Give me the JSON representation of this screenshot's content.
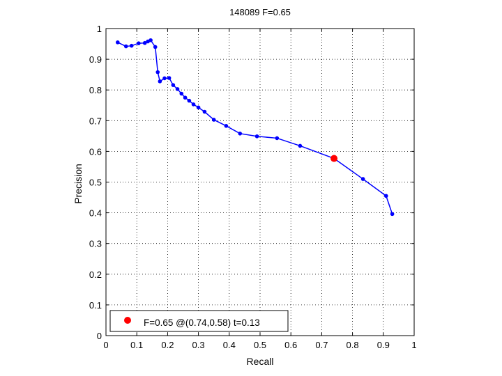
{
  "chart_data": {
    "type": "line",
    "title": "148089 F=0.65",
    "xlabel": "Recall",
    "ylabel": "Precision",
    "xlim": [
      0,
      1
    ],
    "ylim": [
      0,
      1
    ],
    "grid": true,
    "legend_placement": "bottom-left",
    "xticks": [
      "0",
      "0.1",
      "0.2",
      "0.3",
      "0.4",
      "0.5",
      "0.6",
      "0.7",
      "0.8",
      "0.9",
      "1"
    ],
    "yticks": [
      "0",
      "0.1",
      "0.2",
      "0.3",
      "0.4",
      "0.5",
      "0.6",
      "0.7",
      "0.8",
      "0.9",
      "1"
    ],
    "series": [
      {
        "color": "#0000ff",
        "points": [
          [
            0.038,
            0.955
          ],
          [
            0.065,
            0.942
          ],
          [
            0.083,
            0.944
          ],
          [
            0.106,
            0.952
          ],
          [
            0.126,
            0.953
          ],
          [
            0.136,
            0.958
          ],
          [
            0.145,
            0.962
          ],
          [
            0.16,
            0.94
          ],
          [
            0.168,
            0.858
          ],
          [
            0.175,
            0.828
          ],
          [
            0.19,
            0.838
          ],
          [
            0.205,
            0.839
          ],
          [
            0.218,
            0.816
          ],
          [
            0.232,
            0.803
          ],
          [
            0.245,
            0.788
          ],
          [
            0.257,
            0.775
          ],
          [
            0.27,
            0.765
          ],
          [
            0.284,
            0.753
          ],
          [
            0.3,
            0.743
          ],
          [
            0.32,
            0.729
          ],
          [
            0.35,
            0.703
          ],
          [
            0.39,
            0.683
          ],
          [
            0.435,
            0.658
          ],
          [
            0.49,
            0.649
          ],
          [
            0.555,
            0.643
          ],
          [
            0.63,
            0.618
          ],
          [
            0.74,
            0.577
          ],
          [
            0.834,
            0.51
          ],
          [
            0.909,
            0.455
          ],
          [
            0.929,
            0.396
          ]
        ]
      }
    ],
    "highlight": {
      "x": 0.74,
      "y": 0.577,
      "color": "#ff0000"
    },
    "legend": {
      "label": "F=0.65 @(0.74,0.58) t=0.13"
    }
  }
}
